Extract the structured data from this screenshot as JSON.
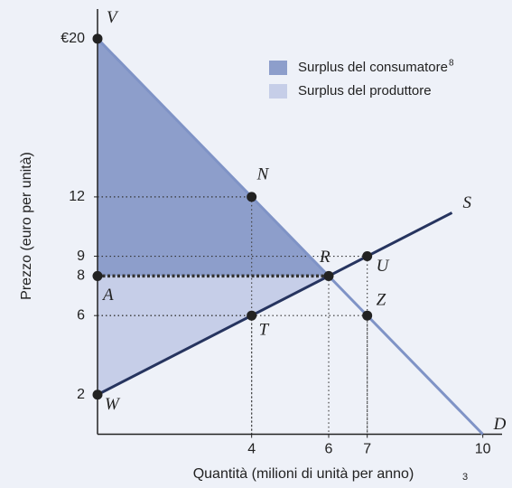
{
  "chart_data": {
    "type": "line",
    "y_label": "Prezzo (euro per unità)",
    "x_label": "Quantità (milioni di unità per anno)",
    "x_label_note": "3",
    "xlim": [
      0,
      10.5
    ],
    "ylim": [
      0,
      21.5
    ],
    "xticks": [
      4,
      6,
      7,
      10
    ],
    "yticks": [
      2,
      6,
      8,
      9,
      12,
      {
        "value": 20,
        "label": "€20"
      }
    ],
    "series": [
      {
        "name": "D",
        "color": "#7f93c6",
        "x": [
          0,
          10
        ],
        "values": [
          20,
          0
        ]
      },
      {
        "name": "S",
        "color": "#26345f",
        "x": [
          0,
          9.2
        ],
        "values": [
          2,
          11.2
        ]
      }
    ],
    "areas": [
      {
        "name": "Surplus del consumatore",
        "note": "8",
        "color": "#8d9ecb",
        "x": [
          0,
          6,
          0
        ],
        "y": [
          20,
          8,
          8
        ]
      },
      {
        "name": "Surplus del produttore",
        "color": "#c6cee8",
        "x": [
          0,
          6,
          0
        ],
        "y": [
          8,
          8,
          2
        ]
      }
    ],
    "points": [
      {
        "label": "V",
        "x": 0,
        "y": 20
      },
      {
        "label": "N",
        "x": 4,
        "y": 12
      },
      {
        "label": "R",
        "x": 6,
        "y": 8,
        "emphasis": true
      },
      {
        "label": "U",
        "x": 7,
        "y": 9
      },
      {
        "label": "Z",
        "x": 7,
        "y": 6
      },
      {
        "label": "T",
        "x": 4,
        "y": 6
      },
      {
        "label": "A",
        "x": 0,
        "y": 8
      },
      {
        "label": "W",
        "x": 0,
        "y": 2
      }
    ],
    "point_color": "#222222",
    "background": "#eef1f8"
  }
}
